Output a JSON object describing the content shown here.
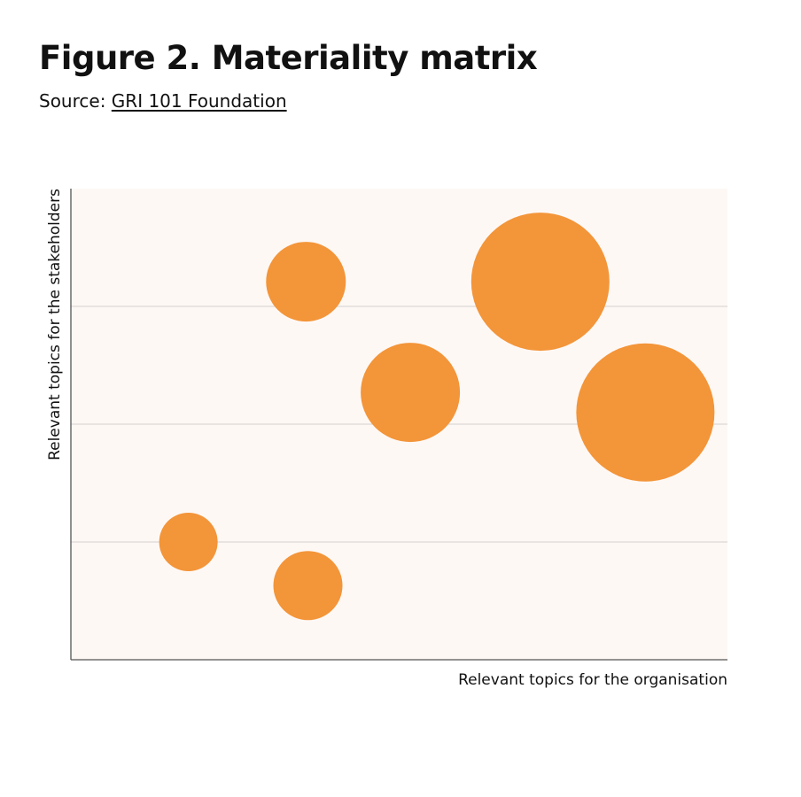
{
  "header": {
    "title": "Figure 2. Materiality matrix",
    "source_prefix": "Source: ",
    "source_link": "GRI 101 Foundation"
  },
  "colors": {
    "bubble": "#f39539",
    "plot_background": "#fef8f5",
    "gridline": "#dcd8d5",
    "axis": "#555555"
  },
  "chart_data": {
    "type": "scatter",
    "title": "Figure 2. Materiality matrix",
    "xlabel": "Relevant topics for the organisation",
    "ylabel": "Relevant topics for the stakeholders",
    "xlim": [
      0,
      100
    ],
    "ylim": [
      0,
      4
    ],
    "y_gridlines": [
      1,
      2,
      3
    ],
    "grid": true,
    "show_tick_labels": false,
    "points": [
      {
        "x": 35.8,
        "y": 3.21,
        "size": 45
      },
      {
        "x": 71.5,
        "y": 3.21,
        "size": 78
      },
      {
        "x": 51.7,
        "y": 2.27,
        "size": 56
      },
      {
        "x": 87.5,
        "y": 2.1,
        "size": 78
      },
      {
        "x": 17.9,
        "y": 1.0,
        "size": 33
      },
      {
        "x": 36.1,
        "y": 0.63,
        "size": 39
      }
    ]
  }
}
